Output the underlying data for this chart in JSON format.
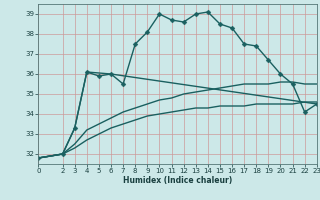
{
  "xlabel": "Humidex (Indice chaleur)",
  "bg_color": "#cce8e8",
  "grid_color": "#cc9999",
  "line_color": "#1a6060",
  "xlim": [
    0,
    23
  ],
  "ylim": [
    31.5,
    39.5
  ],
  "yticks": [
    32,
    33,
    34,
    35,
    36,
    37,
    38,
    39
  ],
  "xticks": [
    0,
    2,
    3,
    4,
    5,
    6,
    7,
    8,
    9,
    10,
    11,
    12,
    13,
    14,
    15,
    16,
    17,
    18,
    19,
    20,
    21,
    22,
    23
  ],
  "series": [
    {
      "x": [
        0,
        2,
        3,
        4,
        5,
        6,
        7,
        8,
        9,
        10,
        11,
        12,
        13,
        14,
        15,
        16,
        17,
        18,
        19,
        20,
        21,
        22,
        23
      ],
      "y": [
        31.8,
        32.0,
        33.3,
        36.1,
        35.9,
        36.0,
        35.5,
        37.5,
        38.1,
        39.0,
        38.7,
        38.6,
        39.0,
        39.1,
        38.5,
        38.3,
        37.5,
        37.4,
        36.7,
        36.0,
        35.5,
        34.1,
        34.5
      ],
      "marker": "D",
      "markersize": 2.5,
      "linewidth": 1.0
    },
    {
      "x": [
        0,
        2,
        3,
        4,
        6,
        23
      ],
      "y": [
        31.8,
        32.0,
        33.3,
        36.1,
        36.0,
        34.5
      ],
      "marker": null,
      "markersize": 0,
      "linewidth": 1.0
    },
    {
      "x": [
        0,
        2,
        3,
        4,
        5,
        6,
        7,
        8,
        9,
        10,
        11,
        12,
        13,
        14,
        15,
        16,
        17,
        18,
        19,
        20,
        21,
        22,
        23
      ],
      "y": [
        31.8,
        32.0,
        32.3,
        32.7,
        33.0,
        33.3,
        33.5,
        33.7,
        33.9,
        34.0,
        34.1,
        34.2,
        34.3,
        34.3,
        34.4,
        34.4,
        34.4,
        34.5,
        34.5,
        34.5,
        34.5,
        34.6,
        34.6
      ],
      "marker": null,
      "markersize": 0,
      "linewidth": 1.0
    },
    {
      "x": [
        0,
        2,
        3,
        4,
        5,
        6,
        7,
        8,
        9,
        10,
        11,
        12,
        13,
        14,
        15,
        16,
        17,
        18,
        19,
        20,
        21,
        22,
        23
      ],
      "y": [
        31.8,
        32.0,
        32.5,
        33.2,
        33.5,
        33.8,
        34.1,
        34.3,
        34.5,
        34.7,
        34.8,
        35.0,
        35.1,
        35.2,
        35.3,
        35.4,
        35.5,
        35.5,
        35.5,
        35.6,
        35.6,
        35.5,
        35.5
      ],
      "marker": null,
      "markersize": 0,
      "linewidth": 1.0
    }
  ]
}
